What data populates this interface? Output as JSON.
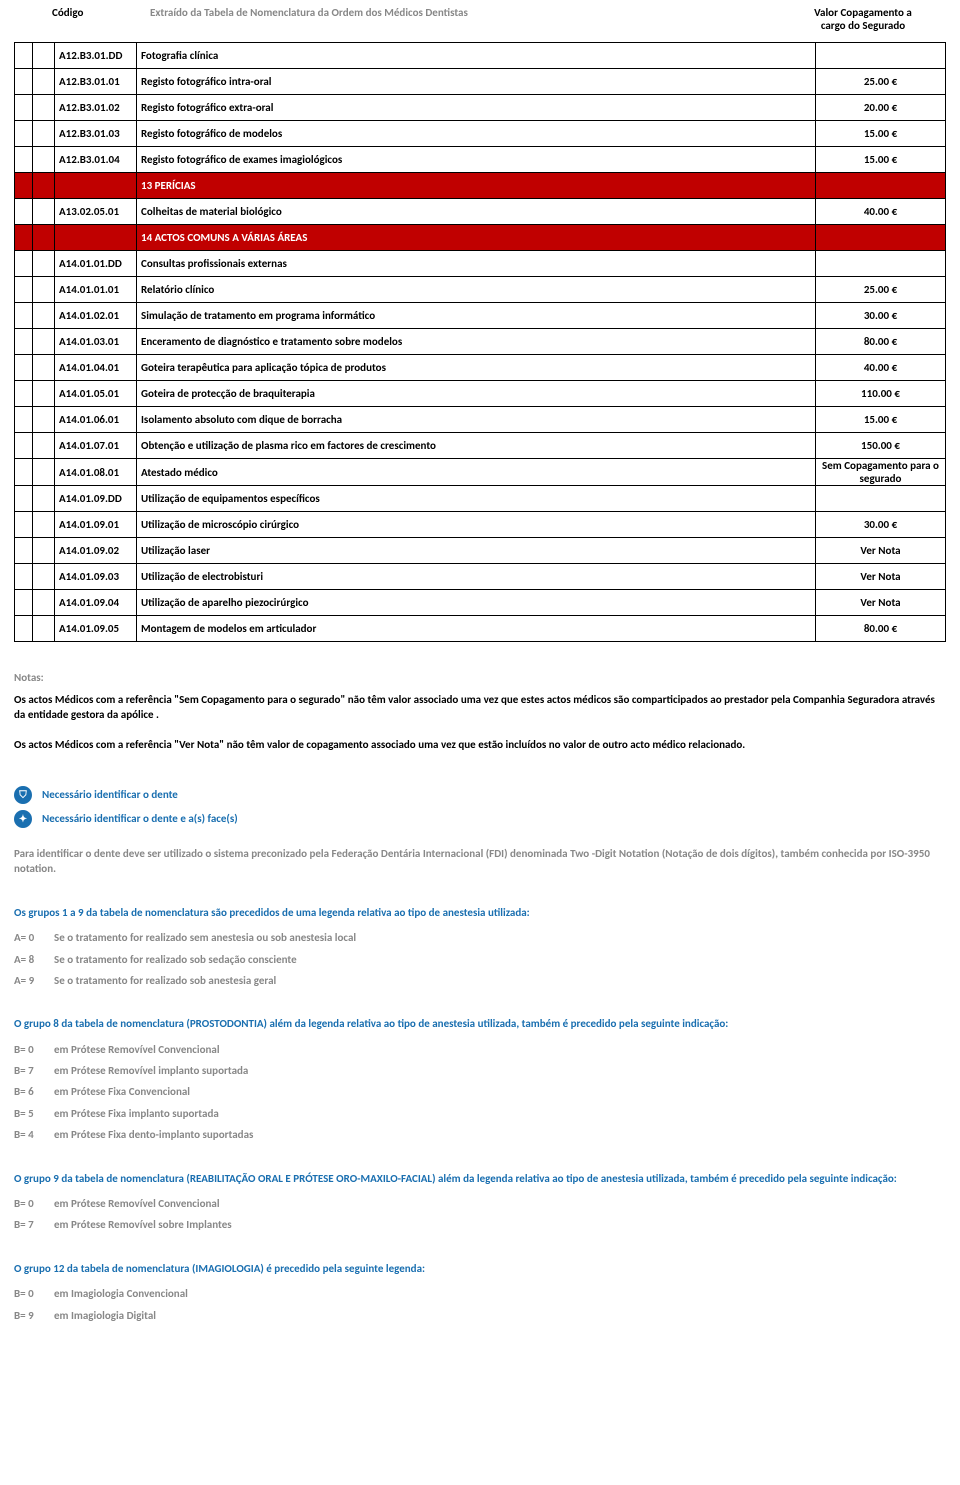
{
  "header": {
    "col_code": "Código",
    "col_mid": "Extraído da Tabela de Nomenclatura da Ordem dos Médicos Dentistas",
    "col_value_line1": "Valor Copagamento a",
    "col_value_line2": "cargo do Segurado"
  },
  "table": {
    "rows": [
      {
        "type": "data",
        "code": "A12.B3.01.DD",
        "desc": "Fotografia clínica",
        "val": ""
      },
      {
        "type": "data",
        "code": "A12.B3.01.01",
        "desc": "Registo fotográfico intra-oral",
        "val": "25.00 €"
      },
      {
        "type": "data",
        "code": "A12.B3.01.02",
        "desc": "Registo fotográfico extra-oral",
        "val": "20.00 €"
      },
      {
        "type": "data",
        "code": "A12.B3.01.03",
        "desc": "Registo fotográfico de modelos",
        "val": "15.00 €"
      },
      {
        "type": "data",
        "code": "A12.B3.01.04",
        "desc": "Registo fotográfico de exames imagiológicos",
        "val": "15.00 €"
      },
      {
        "type": "section",
        "desc": "13 PERÍCIAS"
      },
      {
        "type": "data",
        "code": "A13.02.05.01",
        "desc": "Colheitas de material biológico",
        "val": "40.00 €"
      },
      {
        "type": "section",
        "desc": "14 ACTOS COMUNS A VÁRIAS ÁREAS"
      },
      {
        "type": "data",
        "code": "A14.01.01.DD",
        "desc": "Consultas profissionais externas",
        "val": ""
      },
      {
        "type": "data",
        "code": "A14.01.01.01",
        "desc": "Relatório clínico",
        "val": "25.00 €"
      },
      {
        "type": "data",
        "code": "A14.01.02.01",
        "desc": "Simulação de tratamento em programa informático",
        "val": "30.00 €"
      },
      {
        "type": "data",
        "code": "A14.01.03.01",
        "desc": "Enceramento de diagnóstico e tratamento sobre modelos",
        "val": "80.00 €"
      },
      {
        "type": "data",
        "code": "A14.01.04.01",
        "desc": "Goteira terapêutica para aplicação tópica de produtos",
        "val": "40.00 €"
      },
      {
        "type": "data",
        "code": "A14.01.05.01",
        "desc": "Goteira de protecção de braquiterapia",
        "val": "110.00 €"
      },
      {
        "type": "data",
        "code": "A14.01.06.01",
        "desc": "Isolamento absoluto com dique de borracha",
        "val": "15.00 €"
      },
      {
        "type": "data",
        "code": "A14.01.07.01",
        "desc": "Obtenção e utilização de plasma rico em factores de crescimento",
        "val": "150.00 €"
      },
      {
        "type": "data",
        "half": true,
        "code": "A14.01.08.01",
        "desc": "Atestado médico",
        "val": "Sem Copagamento para o segurado"
      },
      {
        "type": "data",
        "code": "A14.01.09.DD",
        "desc": "Utilização de equipamentos específicos",
        "val": ""
      },
      {
        "type": "data",
        "code": "A14.01.09.01",
        "desc": "Utilização de microscópio cirúrgico",
        "val": "30.00 €"
      },
      {
        "type": "data",
        "code": "A14.01.09.02",
        "desc": "Utilização laser",
        "val": "Ver Nota"
      },
      {
        "type": "data",
        "code": "A14.01.09.03",
        "desc": "Utilização de electrobisturi",
        "val": "Ver Nota"
      },
      {
        "type": "data",
        "code": "A14.01.09.04",
        "desc": "Utilização de aparelho piezocirúrgico",
        "val": "Ver Nota"
      },
      {
        "type": "data",
        "code": "A14.01.09.05",
        "desc": "Montagem de modelos em articulador",
        "val": "80.00 €"
      }
    ]
  },
  "notes": {
    "heading": "Notas:",
    "para1_pre": "Os actos Médicos com a referência ",
    "para1_bold": "\"Sem Copagamento para o segurado\"",
    "para1_post": " não têm valor associado uma vez que estes actos médicos são comparticipados ao prestador pela Companhia Seguradora através da entidade gestora da apólice .",
    "para2_pre": "Os actos Médicos com a referência ",
    "para2_bold": "\"Ver Nota\"",
    "para2_post": " não têm valor de copagamento associado uma vez que estão incluídos no valor de outro acto médico relacionado.",
    "icon1_label": "Necessário identificar o dente",
    "icon2_label": "Necessário identificar o dente e a(s) face(s)",
    "grey_para": "Para identificar o dente deve ser utilizado o sistema preconizado pela Federação Dentária Internacional (FDI) denominada Two -Digit Notation (Notação de dois dígitos), também conhecida por ISO-3950 notation.",
    "blue1": "Os grupos 1 a 9 da tabela de nomenclatura são precedidos de uma legenda relativa ao tipo de anestesia utilizada:",
    "legend_a": [
      {
        "k": "A= 0",
        "v": "Se o tratamento for realizado sem anestesia ou sob anestesia local"
      },
      {
        "k": "A= 8",
        "v": "Se o tratamento for realizado sob sedação consciente"
      },
      {
        "k": "A= 9",
        "v": "Se o tratamento for realizado sob anestesia geral"
      }
    ],
    "blue2": "O grupo 8 da tabela de nomenclatura (PROSTODONTIA) além da legenda relativa ao tipo de anestesia utilizada, também é precedido pela seguinte indicação:",
    "legend_b8": [
      {
        "k": "B= 0",
        "v": "em Prótese Removível Convencional"
      },
      {
        "k": "B= 7",
        "v": "em Prótese Removível implanto suportada"
      },
      {
        "k": "B= 6",
        "v": "em Prótese Fixa Convencional"
      },
      {
        "k": "B= 5",
        "v": "em Prótese Fixa implanto suportada"
      },
      {
        "k": "B= 4",
        "v": "em Prótese Fixa dento-implanto suportadas"
      }
    ],
    "blue3": "O grupo 9 da tabela de nomenclatura (REABILITAÇÃO ORAL E PRÓTESE ORO-MAXILO-FACIAL) além da legenda relativa ao tipo de anestesia utilizada, também é precedido pela seguinte indicação:",
    "legend_b9": [
      {
        "k": "B= 0",
        "v": "em Prótese Removível Convencional"
      },
      {
        "k": "B= 7",
        "v": "em Prótese Removível sobre Implantes"
      }
    ],
    "blue4": "O grupo 12 da tabela de nomenclatura (IMAGIOLOGIA) é precedido pela seguinte legenda:",
    "legend_b12": [
      {
        "k": "B= 0",
        "v": "em Imagiologia Convencional"
      },
      {
        "k": "B= 9",
        "v": "em Imagiologia Digital"
      }
    ]
  },
  "icon_glyph1": "⛉",
  "icon_glyph2": "✦"
}
